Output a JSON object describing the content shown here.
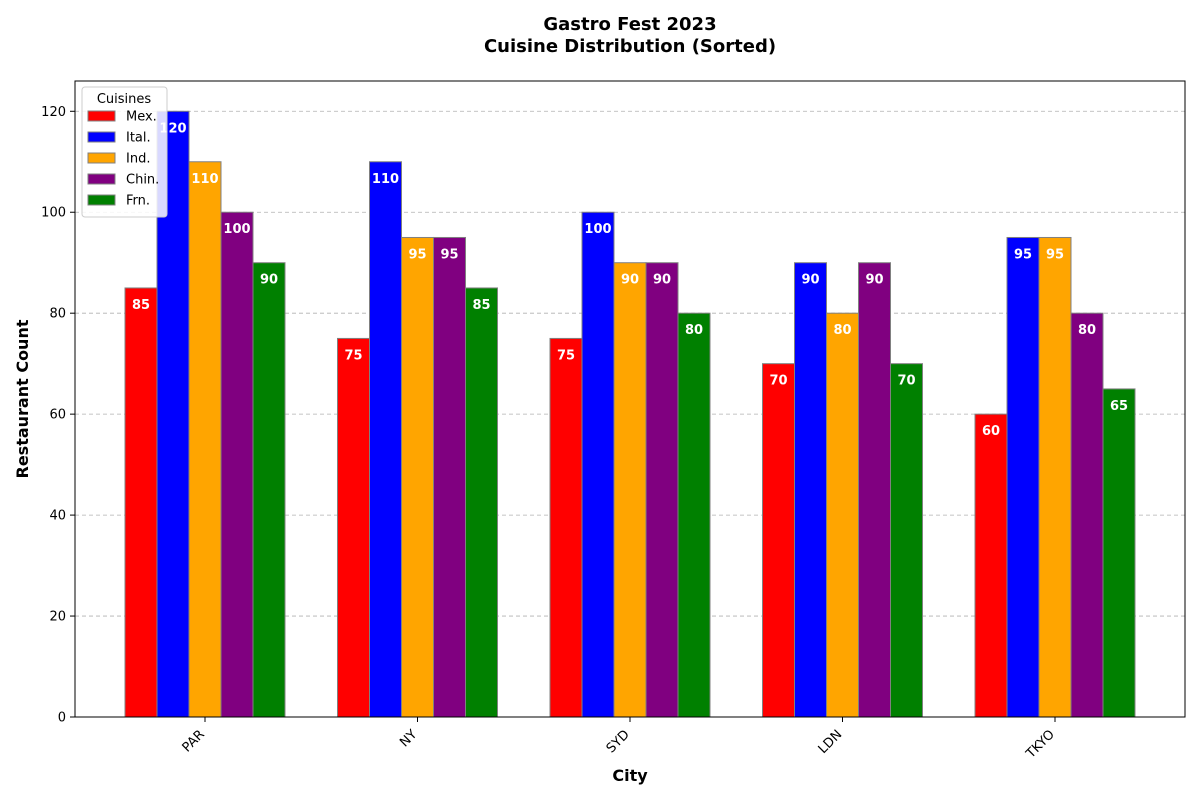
{
  "chart_data": {
    "type": "bar",
    "title": "Gastro Fest 2023",
    "subtitle": "Cuisine Distribution (Sorted)",
    "xlabel": "City",
    "ylabel": "Restaurant Count",
    "categories": [
      "PAR",
      "NY",
      "SYD",
      "LDN",
      "TKYO"
    ],
    "ylim": [
      0,
      126
    ],
    "yticks": [
      0,
      20,
      40,
      60,
      80,
      100,
      120
    ],
    "grid": "y-dashed",
    "legend": {
      "title": "Cuisines",
      "placement": "top-left"
    },
    "series": [
      {
        "name": "Mex.",
        "color": "#ff0000",
        "values": [
          85,
          75,
          75,
          70,
          60
        ]
      },
      {
        "name": "Ital.",
        "color": "#0000ff",
        "values": [
          120,
          110,
          100,
          90,
          95
        ]
      },
      {
        "name": "Ind.",
        "color": "#ffa500",
        "values": [
          110,
          95,
          90,
          80,
          95
        ]
      },
      {
        "name": "Chin.",
        "color": "#800080",
        "values": [
          100,
          95,
          90,
          90,
          80
        ]
      },
      {
        "name": "Frn.",
        "color": "#008000",
        "values": [
          90,
          85,
          80,
          70,
          65
        ]
      }
    ]
  }
}
